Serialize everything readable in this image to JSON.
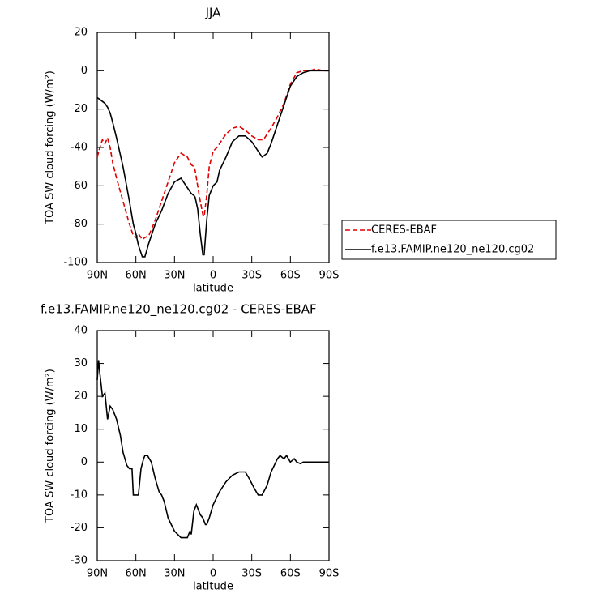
{
  "chart_data": [
    {
      "type": "line",
      "title": "JJA",
      "x_label": "latitude",
      "y_label": "TOA SW cloud forcing (W/m²)",
      "x": [
        90,
        88,
        86,
        84,
        82,
        80,
        78,
        75,
        70,
        65,
        62,
        60,
        58,
        57,
        55,
        53,
        50,
        45,
        40,
        35,
        30,
        25,
        20,
        17,
        15,
        14,
        12,
        10,
        8,
        7,
        5,
        3,
        0,
        -3,
        -5,
        -10,
        -15,
        -20,
        -25,
        -30,
        -35,
        -38,
        -40,
        -42,
        -45,
        -50,
        -55,
        -60,
        -65,
        -70,
        -75,
        -80,
        -85,
        -90
      ],
      "series": [
        {
          "name": "CERES-EBAF",
          "color": "#e00000",
          "dash": true,
          "values": [
            -45,
            -40,
            -36,
            -38,
            -35,
            -40,
            -48,
            -56,
            -68,
            -80,
            -86,
            -87,
            -85,
            -86,
            -88,
            -87,
            -86,
            -78,
            -68,
            -58,
            -48,
            -43,
            -45,
            -49,
            -50,
            -52,
            -60,
            -68,
            -75,
            -76,
            -65,
            -50,
            -42,
            -40,
            -38,
            -33,
            -30,
            -29,
            -31,
            -34,
            -36,
            -36,
            -35,
            -33,
            -30,
            -24,
            -17,
            -7,
            -1,
            0,
            0,
            1,
            0,
            0
          ]
        },
        {
          "name": "f.e13.FAMIP.ne120_ne120.cg02",
          "color": "#000000",
          "dash": false,
          "values": [
            -14,
            -15,
            -16,
            -17,
            -19,
            -22,
            -27,
            -35,
            -50,
            -68,
            -80,
            -85,
            -91,
            -93,
            -97,
            -97,
            -90,
            -80,
            -73,
            -64,
            -58,
            -56,
            -61,
            -64,
            -65,
            -66,
            -72,
            -85,
            -96,
            -96,
            -78,
            -65,
            -60,
            -58,
            -52,
            -45,
            -37,
            -34,
            -34,
            -37,
            -42,
            -45,
            -44,
            -43,
            -38,
            -28,
            -18,
            -8,
            -3,
            -1,
            0,
            0,
            0,
            0
          ]
        }
      ],
      "xlim": [
        90,
        -90
      ],
      "xticks": [
        {
          "value": 90,
          "label": "90N"
        },
        {
          "value": 60,
          "label": "60N"
        },
        {
          "value": 30,
          "label": "30N"
        },
        0,
        {
          "value": -30,
          "label": "30S"
        },
        {
          "value": -60,
          "label": "60S"
        },
        {
          "value": -90,
          "label": "90S"
        }
      ],
      "ylim": [
        -100,
        20
      ],
      "yticks": [
        20,
        0,
        -20,
        -40,
        -60,
        -80,
        -100
      ],
      "grid": false,
      "legend": "outside-right"
    },
    {
      "type": "line",
      "title": "f.e13.FAMIP.ne120_ne120.cg02 - CERES-EBAF",
      "x_label": "latitude",
      "y_label": "TOA SW cloud forcing (W/m²)",
      "x": [
        90,
        89,
        88,
        86,
        84,
        82,
        80,
        78,
        75,
        72,
        70,
        67,
        65,
        63,
        62,
        60,
        58,
        56,
        54,
        53,
        51,
        48,
        45,
        42,
        40,
        38,
        35,
        30,
        25,
        22,
        20,
        18,
        17,
        15,
        13,
        10,
        8,
        6,
        5,
        3,
        0,
        -5,
        -10,
        -15,
        -20,
        -25,
        -28,
        -32,
        -35,
        -38,
        -42,
        -45,
        -50,
        -52,
        -55,
        -57,
        -60,
        -63,
        -65,
        -68,
        -70,
        -75,
        -80,
        -90
      ],
      "series": [
        {
          "name": null,
          "color": "#000000",
          "dash": false,
          "values": [
            25,
            31,
            27,
            20,
            21,
            13,
            17,
            16,
            13,
            8,
            3,
            -1,
            -2,
            -2,
            -10,
            -10,
            -10,
            -2,
            1,
            2,
            2,
            0,
            -5,
            -9,
            -10,
            -12,
            -17,
            -21,
            -23,
            -23,
            -23,
            -21,
            -22,
            -15,
            -13,
            -16,
            -17,
            -19,
            -19,
            -17,
            -13,
            -9,
            -6,
            -4,
            -3,
            -3,
            -5,
            -8,
            -10,
            -10,
            -7,
            -3,
            1,
            2,
            1,
            2,
            0,
            1,
            0,
            -0.5,
            0,
            0,
            0,
            0
          ]
        }
      ],
      "xlim": [
        90,
        -90
      ],
      "xticks": [
        {
          "value": 90,
          "label": "90N"
        },
        {
          "value": 60,
          "label": "60N"
        },
        {
          "value": 30,
          "label": "30N"
        },
        0,
        {
          "value": -30,
          "label": "30S"
        },
        {
          "value": -60,
          "label": "60S"
        },
        {
          "value": -90,
          "label": "90S"
        }
      ],
      "ylim": [
        -30,
        40
      ],
      "yticks": [
        40,
        30,
        20,
        10,
        0,
        -10,
        -20,
        -30
      ],
      "grid": false
    }
  ]
}
